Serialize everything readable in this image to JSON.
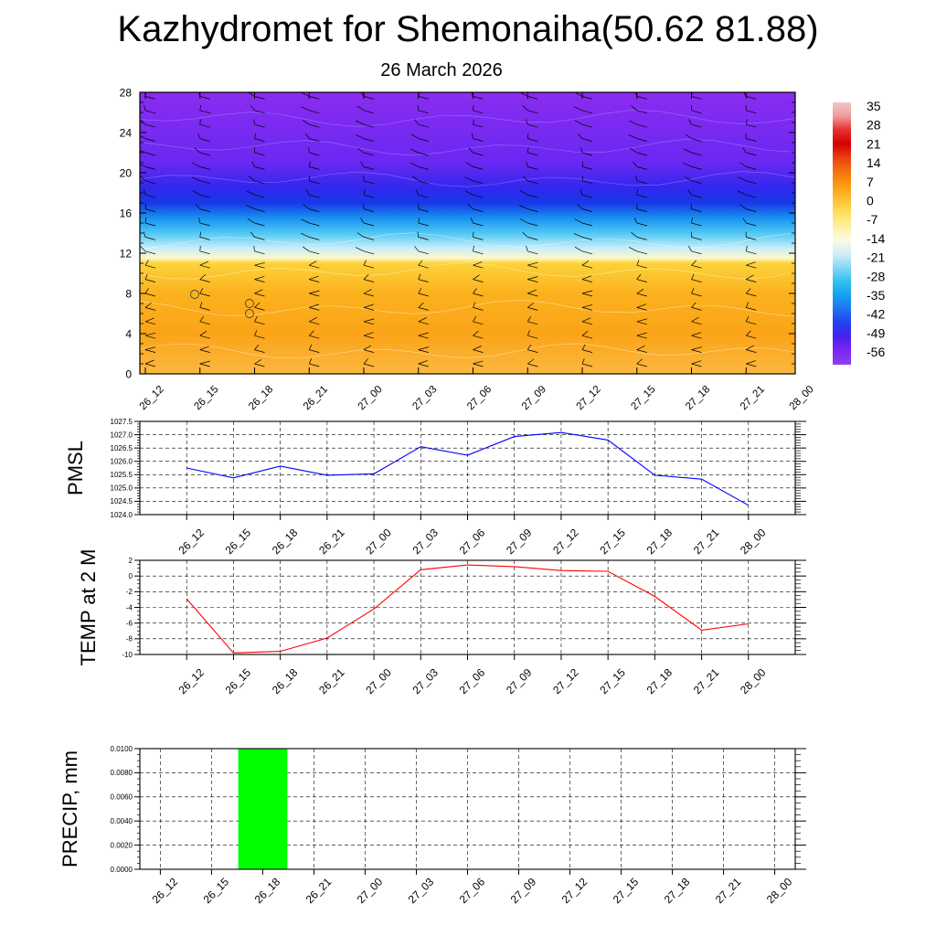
{
  "title": "Kazhydromet for Shemonaiha(50.62 81.88)",
  "subtitle": "26 March 2026",
  "time_labels": [
    "26_12",
    "26_15",
    "26_18",
    "26_21",
    "27_00",
    "27_03",
    "27_06",
    "27_09",
    "27_12",
    "27_15",
    "27_18",
    "27_21",
    "28_00"
  ],
  "chart_data": [
    {
      "type": "heatmap",
      "name": "vertical-cross-section",
      "title": "",
      "ylim": [
        0,
        28
      ],
      "y_ticks": [
        0,
        4,
        8,
        12,
        16,
        20,
        24,
        28
      ],
      "x": [
        "26_12",
        "26_15",
        "26_18",
        "26_21",
        "27_00",
        "27_03",
        "27_06",
        "27_09",
        "27_12",
        "27_15",
        "27_18",
        "27_21",
        "28_00"
      ],
      "colorbar_labels": [
        "35",
        "28",
        "21",
        "14",
        "7",
        "0",
        "-7",
        "-14",
        "-21",
        "-28",
        "-35",
        "-42",
        "-49",
        "-56"
      ],
      "colorbar_colors": [
        "#f2c6c6",
        "#f09a9a",
        "#e53030",
        "#d40000",
        "#e84010",
        "#f57010",
        "#fb9c10",
        "#fdc030",
        "#fde060",
        "#fff0a0",
        "#fbfbe6",
        "#d0ecf4",
        "#80d8f4",
        "#30c0f0",
        "#14a0f0",
        "#2070f0",
        "#2040f0",
        "#4820f0",
        "#7a28f0",
        "#9040f0"
      ],
      "profile": [
        {
          "level": 0,
          "color": "#fbb840"
        },
        {
          "level": 4,
          "color": "#fba418"
        },
        {
          "level": 8,
          "color": "#fbb21e"
        },
        {
          "level": 11,
          "color": "#fdd23a"
        },
        {
          "level": 11.5,
          "color": "#fff8c8"
        },
        {
          "level": 12.5,
          "color": "#c8eef8"
        },
        {
          "level": 14,
          "color": "#50c8f4"
        },
        {
          "level": 15.5,
          "color": "#1890f0"
        },
        {
          "level": 17,
          "color": "#1838e8"
        },
        {
          "level": 18.5,
          "color": "#3028ee"
        },
        {
          "level": 21,
          "color": "#6a28f2"
        },
        {
          "level": 28,
          "color": "#8a2cf0"
        }
      ]
    },
    {
      "type": "line",
      "name": "pmsl",
      "ylabel": "PMSL",
      "x": [
        "26_12",
        "26_15",
        "26_18",
        "26_21",
        "27_00",
        "27_03",
        "27_06",
        "27_09",
        "27_12",
        "27_15",
        "27_18",
        "27_21",
        "28_00"
      ],
      "values": [
        1025.75,
        1025.38,
        1025.82,
        1025.48,
        1025.53,
        1026.55,
        1026.23,
        1026.93,
        1027.08,
        1026.8,
        1025.48,
        1025.33,
        1024.35
      ],
      "ylim": [
        1024.0,
        1027.5
      ],
      "y_ticks": [
        "1024.0",
        "1024.5",
        "1025.0",
        "1025.5",
        "1026.0",
        "1026.5",
        "1027.0",
        "1027.5"
      ],
      "color": "#0000ff"
    },
    {
      "type": "line",
      "name": "temp-2m",
      "ylabel": "TEMP at 2 M",
      "x": [
        "26_12",
        "26_15",
        "26_18",
        "26_21",
        "27_00",
        "27_03",
        "27_06",
        "27_09",
        "27_12",
        "27_15",
        "27_18",
        "27_21",
        "28_00"
      ],
      "values": [
        -2.9,
        -9.8,
        -9.6,
        -7.9,
        -4.2,
        0.8,
        1.4,
        1.2,
        0.7,
        0.6,
        -2.6,
        -6.9,
        -6.1
      ],
      "ylim": [
        -10,
        2
      ],
      "y_ticks": [
        "-10",
        "-8",
        "-6",
        "-4",
        "-2",
        "0",
        "2"
      ],
      "color": "#ff0000"
    },
    {
      "type": "bar",
      "name": "precipitation",
      "ylabel": "PRECIP, mm",
      "categories": [
        "26_12",
        "26_15",
        "26_18",
        "26_21",
        "27_00",
        "27_03",
        "27_06",
        "27_09",
        "27_12",
        "27_15",
        "27_18",
        "27_21",
        "28_00"
      ],
      "values": [
        0,
        0,
        0.01,
        0,
        0,
        0,
        0,
        0,
        0,
        0,
        0,
        0,
        0
      ],
      "ylim": [
        0,
        0.01
      ],
      "y_ticks": [
        "0.0000",
        "0.0020",
        "0.0040",
        "0.0060",
        "0.0080",
        "0.0100"
      ],
      "color": "#00ff00"
    }
  ]
}
